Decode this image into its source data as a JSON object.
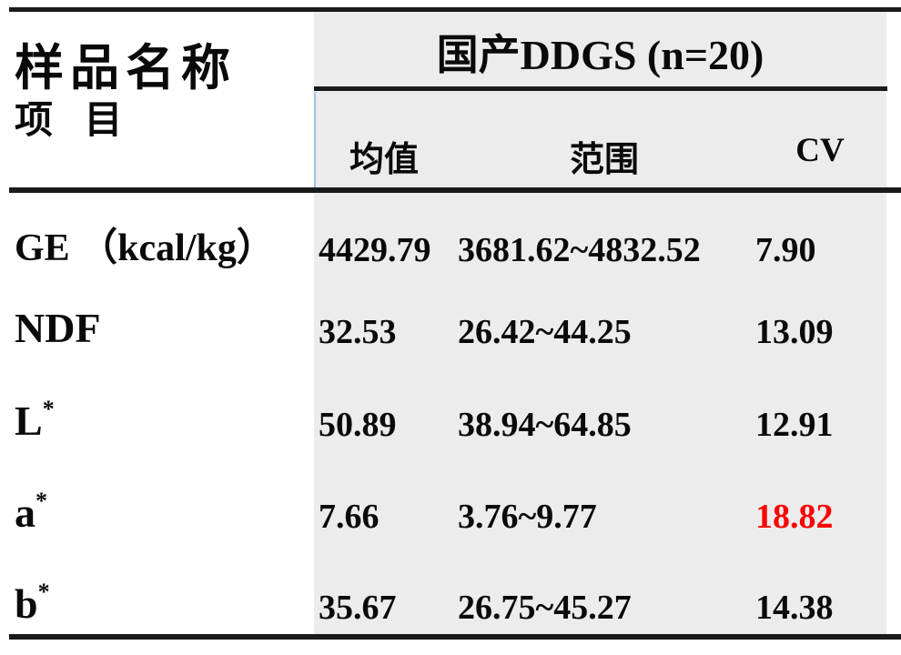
{
  "table": {
    "stub_header_top": "样品名称",
    "stub_header_bottom": "项 目",
    "group_header": "国产DDGS (n=20)",
    "columns": [
      "均值",
      "范围",
      "CV"
    ],
    "rows": [
      {
        "item": "GE （kcal/kg）",
        "item_sup": "",
        "mean": "4429.79",
        "range": "3681.62~4832.52",
        "cv": "7.90",
        "cv_style": ""
      },
      {
        "item": "NDF",
        "item_sup": "",
        "mean": "32.53",
        "range": "26.42~44.25",
        "cv": "13.09",
        "cv_style": ""
      },
      {
        "item": "L",
        "item_sup": "*",
        "mean": "50.89",
        "range": "38.94~64.85",
        "cv": "12.91",
        "cv_style": ""
      },
      {
        "item": "a",
        "item_sup": "*",
        "mean": "7.66",
        "range": "3.76~9.77",
        "cv": "18.82",
        "cv_style": "color:#FF0000"
      },
      {
        "item": "b",
        "item_sup": "*",
        "mean": "35.67",
        "range": "26.75~45.27",
        "cv": "14.38",
        "cv_style": ""
      }
    ]
  },
  "colors": {
    "highlight_cv": "#FF0000",
    "group_background": "#ECECEC",
    "rule_lines": "#1A1A1A",
    "mean_cell_left_border": "#9CC2E5"
  }
}
